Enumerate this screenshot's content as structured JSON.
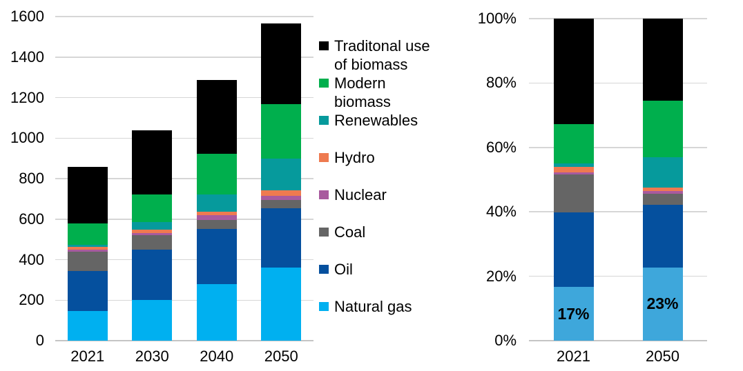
{
  "palette": {
    "natural_gas": "#00B0F0",
    "natural_gas_share": "#3EA7DB",
    "oil": "#05509E",
    "coal": "#656565",
    "nuclear": "#A85A9E",
    "hydro": "#EE7A50",
    "renewables": "#069A9C",
    "modern_biomass": "#00AF4D",
    "traditional_biomass": "#000000",
    "gridline": "#D6D6D6",
    "zero_line": "#C4C4C4",
    "text": "#000000"
  },
  "legend": {
    "items": [
      {
        "label": "Traditonal use of biomass",
        "color": "traditional_biomass"
      },
      {
        "label": "Modern biomass",
        "color": "modern_biomass"
      },
      {
        "label": "Renewables",
        "color": "renewables"
      },
      {
        "label": "Hydro",
        "color": "hydro"
      },
      {
        "label": "Nuclear",
        "color": "nuclear"
      },
      {
        "label": "Coal",
        "color": "coal"
      },
      {
        "label": "Oil",
        "color": "oil"
      },
      {
        "label": "Natural gas",
        "color": "natural_gas"
      }
    ]
  },
  "chart_data": [
    {
      "type": "bar",
      "stacked": true,
      "grid": true,
      "legend_position": "right",
      "title": "",
      "xlabel": "",
      "ylabel": "",
      "categories": [
        "2021",
        "2030",
        "2040",
        "2050"
      ],
      "ylim": [
        0,
        1600
      ],
      "yticks": [
        {
          "value": 0,
          "label": "0"
        },
        {
          "value": 200,
          "label": "200"
        },
        {
          "value": 400,
          "label": "400"
        },
        {
          "value": 600,
          "label": "600"
        },
        {
          "value": 800,
          "label": "800"
        },
        {
          "value": 1000,
          "label": "1000"
        },
        {
          "value": 1200,
          "label": "1200"
        },
        {
          "value": 1400,
          "label": "1400"
        },
        {
          "value": 1600,
          "label": "1600"
        }
      ],
      "series": [
        {
          "name": "Natural gas",
          "color": "natural_gas",
          "values": [
            145,
            200,
            280,
            360
          ]
        },
        {
          "name": "Oil",
          "color": "oil",
          "values": [
            200,
            250,
            270,
            295
          ]
        },
        {
          "name": "Coal",
          "color": "coal",
          "values": [
            95,
            70,
            47,
            41
          ]
        },
        {
          "name": "Nuclear",
          "color": "nuclear",
          "values": [
            9,
            10,
            21,
            19
          ]
        },
        {
          "name": "Hydro",
          "color": "hydro",
          "values": [
            14,
            17,
            20,
            26
          ]
        },
        {
          "name": "Renewables",
          "color": "renewables",
          "values": [
            11,
            40,
            84,
            158
          ]
        },
        {
          "name": "Modern biomass",
          "color": "modern_biomass",
          "values": [
            105,
            136,
            199,
            269
          ]
        },
        {
          "name": "Traditonal use of biomass",
          "color": "traditional_biomass",
          "values": [
            280,
            314,
            367,
            397
          ]
        }
      ]
    },
    {
      "type": "bar",
      "stacked": true,
      "grid": true,
      "unit": "percent",
      "title": "",
      "xlabel": "",
      "ylabel": "",
      "categories": [
        "2021",
        "2050"
      ],
      "ylim": [
        0,
        100
      ],
      "yticks": [
        {
          "value": 0,
          "label": "0%"
        },
        {
          "value": 20,
          "label": "20%"
        },
        {
          "value": 40,
          "label": "40%"
        },
        {
          "value": 60,
          "label": "60%"
        },
        {
          "value": 80,
          "label": "80%"
        },
        {
          "value": 100,
          "label": "100%"
        }
      ],
      "series": [
        {
          "name": "Natural gas",
          "color": "natural_gas_share",
          "values": [
            16.6,
            22.7
          ]
        },
        {
          "name": "Oil",
          "color": "oil",
          "values": [
            23.2,
            19.4
          ]
        },
        {
          "name": "Coal",
          "color": "coal",
          "values": [
            11.7,
            3.4
          ]
        },
        {
          "name": "Nuclear",
          "color": "nuclear",
          "values": [
            0.8,
            0.9
          ]
        },
        {
          "name": "Hydro",
          "color": "hydro",
          "values": [
            1.6,
            1.1
          ]
        },
        {
          "name": "Renewables",
          "color": "renewables",
          "values": [
            1.1,
            9.5
          ]
        },
        {
          "name": "Modern biomass",
          "color": "modern_biomass",
          "values": [
            12.3,
            17.6
          ]
        },
        {
          "name": "Traditonal use of biomass",
          "color": "traditional_biomass",
          "values": [
            32.7,
            25.4
          ]
        }
      ],
      "bar_labels": [
        {
          "category": "2021",
          "text": "17%"
        },
        {
          "category": "2050",
          "text": "23%"
        }
      ]
    }
  ]
}
